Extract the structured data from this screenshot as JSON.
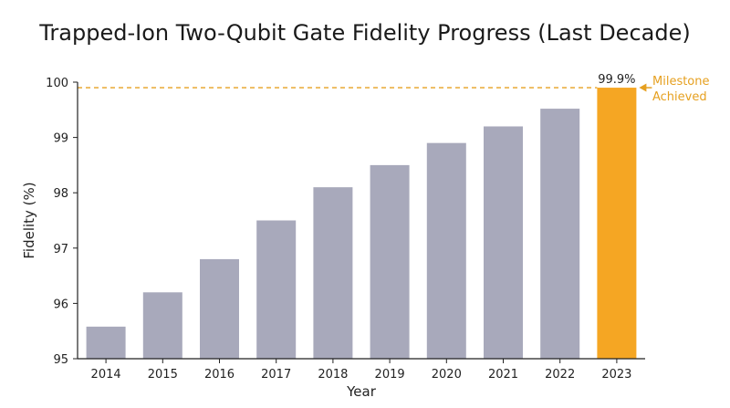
{
  "chart_data": {
    "type": "bar",
    "title": "Trapped-Ion Two-Qubit Gate Fidelity Progress (Last Decade)",
    "xlabel": "Year",
    "ylabel": "Fidelity (%)",
    "categories": [
      "2014",
      "2015",
      "2016",
      "2017",
      "2018",
      "2019",
      "2020",
      "2021",
      "2022",
      "2023"
    ],
    "values": [
      95.58,
      96.2,
      96.8,
      97.5,
      98.1,
      98.5,
      98.9,
      99.2,
      99.52,
      99.9
    ],
    "ylim": [
      95,
      100
    ],
    "yticks": [
      95,
      96,
      97,
      98,
      99,
      100
    ],
    "grid": false,
    "highlight_index": 9,
    "data_label": "99.9%",
    "annotation": {
      "line1": "Milestone",
      "line2": "Achieved"
    },
    "reference_line_value": 99.9
  },
  "colors": {
    "bar": "#a8a9bb",
    "highlight": "#f5a623",
    "axis": "#222222",
    "annotation": "#e6a020"
  }
}
